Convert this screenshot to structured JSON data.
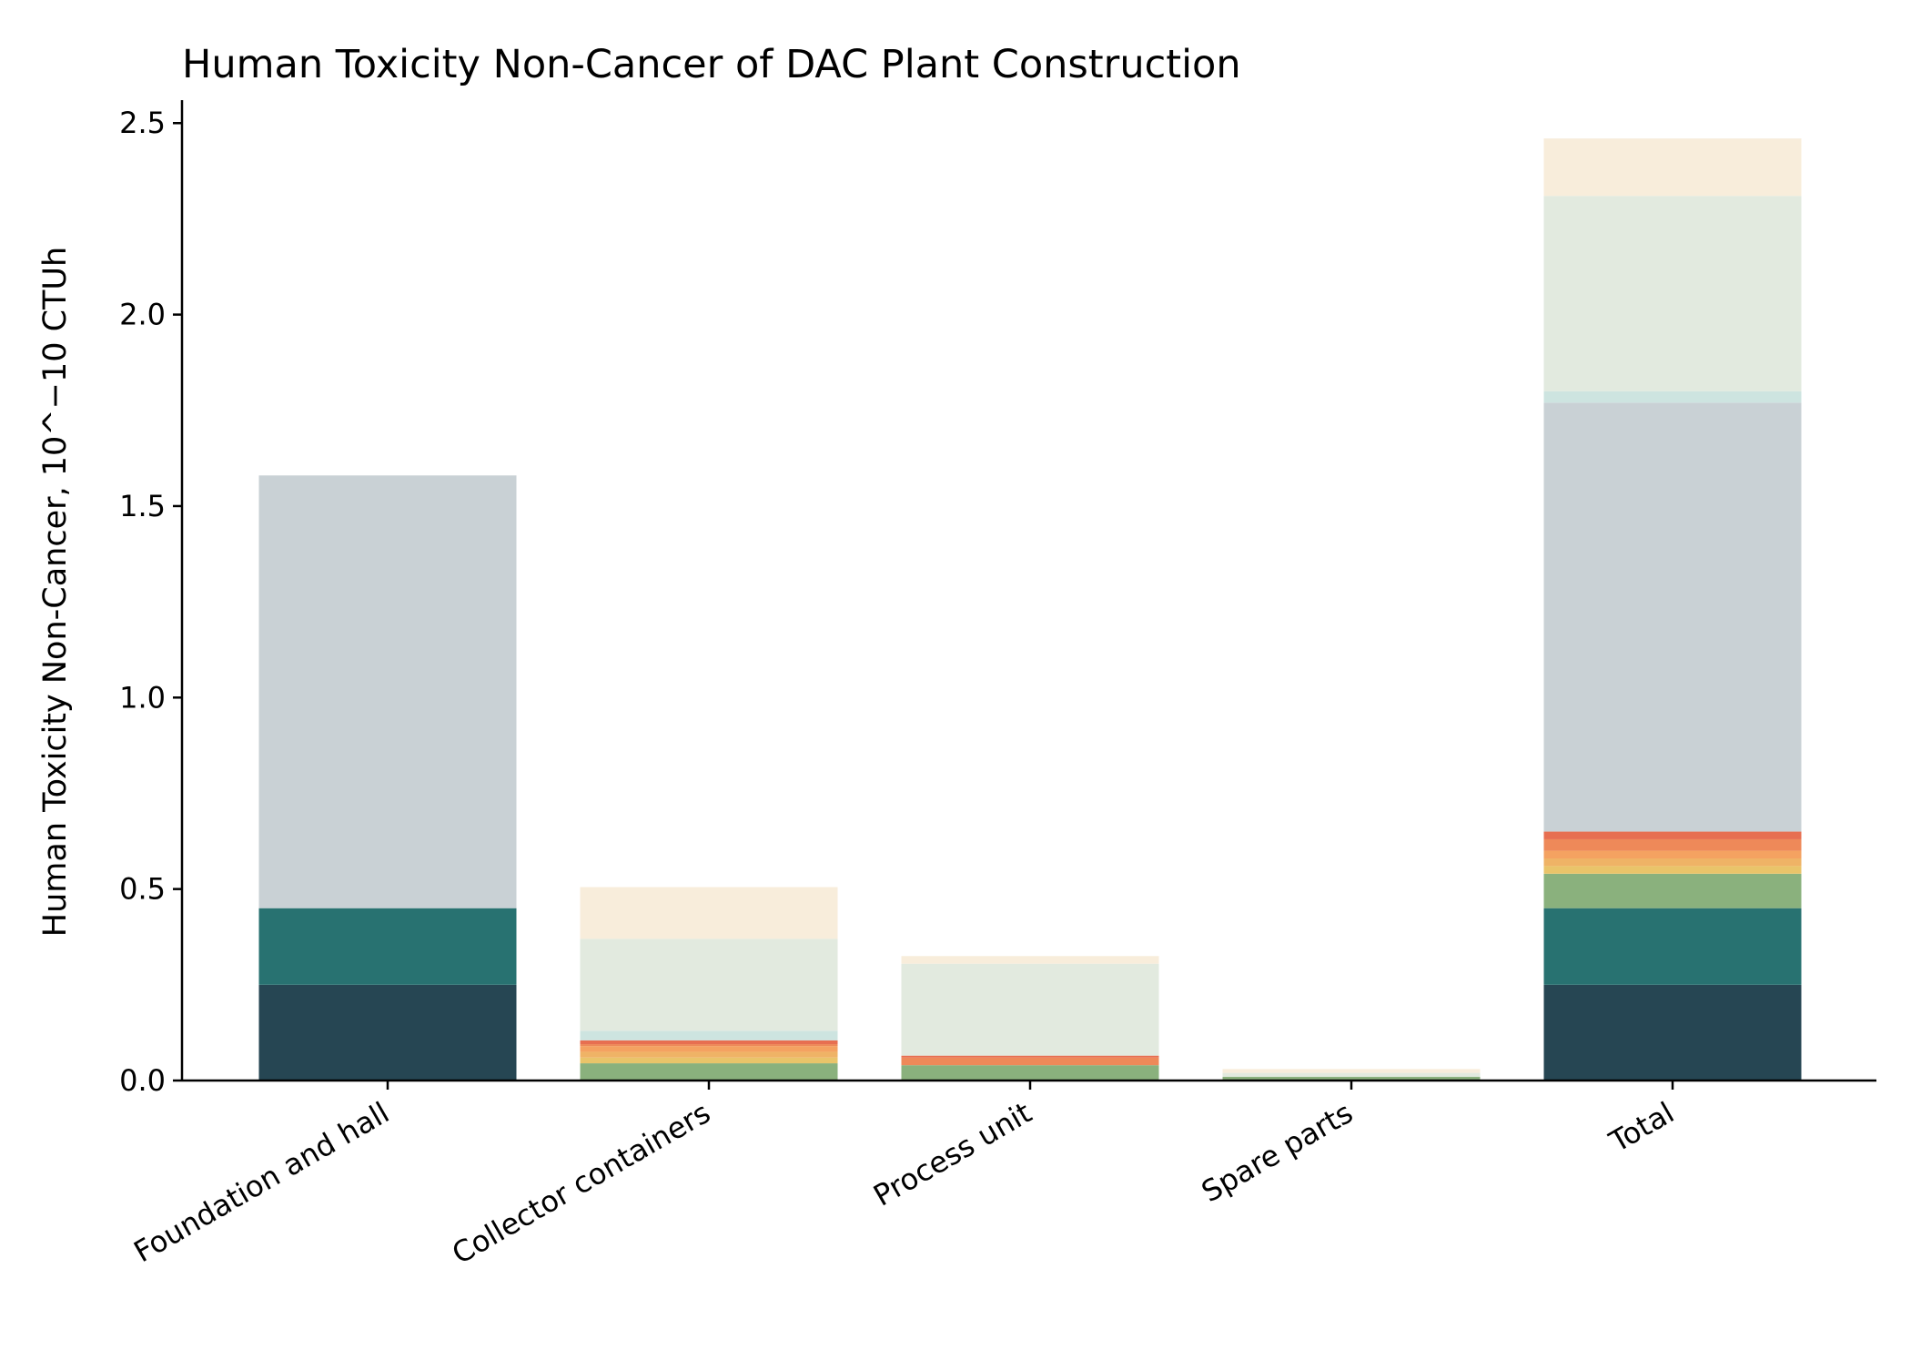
{
  "chart_data": {
    "type": "bar",
    "stacked": true,
    "title": "Human Toxicity Non-Cancer of DAC Plant Construction",
    "xlabel": "",
    "ylabel": "Human Toxicity Non-Cancer, 10^−10 CTUh",
    "categories": [
      "Foundation and hall",
      "Collector containers",
      "Process unit",
      "Spare parts",
      "Total"
    ],
    "ylim": [
      0,
      2.56
    ],
    "yticks": [
      0.0,
      0.5,
      1.0,
      1.5,
      2.0,
      2.5
    ],
    "ytick_labels": [
      "0.0",
      "0.5",
      "1.0",
      "1.5",
      "2.0",
      "2.5"
    ],
    "grid": false,
    "legend": "none",
    "series": [
      {
        "color": "#264653",
        "values": [
          0.25,
          0.0,
          0.0,
          0.0,
          0.25
        ]
      },
      {
        "color": "#287271",
        "values": [
          0.2,
          0.0,
          0.0,
          0.0,
          0.2
        ]
      },
      {
        "color": "#8ab17d",
        "values": [
          0.0,
          0.045,
          0.04,
          0.01,
          0.09
        ]
      },
      {
        "color": "#e9c46a",
        "values": [
          0.0,
          0.015,
          0.0,
          0.0,
          0.02
        ]
      },
      {
        "color": "#efb366",
        "values": [
          0.0,
          0.015,
          0.0,
          0.0,
          0.02
        ]
      },
      {
        "color": "#f4a261",
        "values": [
          0.0,
          0.015,
          0.0,
          0.0,
          0.02
        ]
      },
      {
        "color": "#ee8959",
        "values": [
          0.0,
          0.005,
          0.02,
          0.0,
          0.03
        ]
      },
      {
        "color": "#e76f51",
        "values": [
          0.0,
          0.01,
          0.005,
          0.0,
          0.02
        ]
      },
      {
        "color": "#c9d1d5",
        "values": [
          1.13,
          0.0,
          0.0,
          0.0,
          1.12
        ]
      },
      {
        "color": "#cde4e0",
        "values": [
          0.0,
          0.025,
          0.0,
          0.0,
          0.03
        ]
      },
      {
        "color": "#e2eadf",
        "values": [
          0.0,
          0.24,
          0.24,
          0.01,
          0.51
        ]
      },
      {
        "color": "#f8eddb",
        "values": [
          0.0,
          0.135,
          0.02,
          0.01,
          0.15
        ]
      }
    ]
  }
}
